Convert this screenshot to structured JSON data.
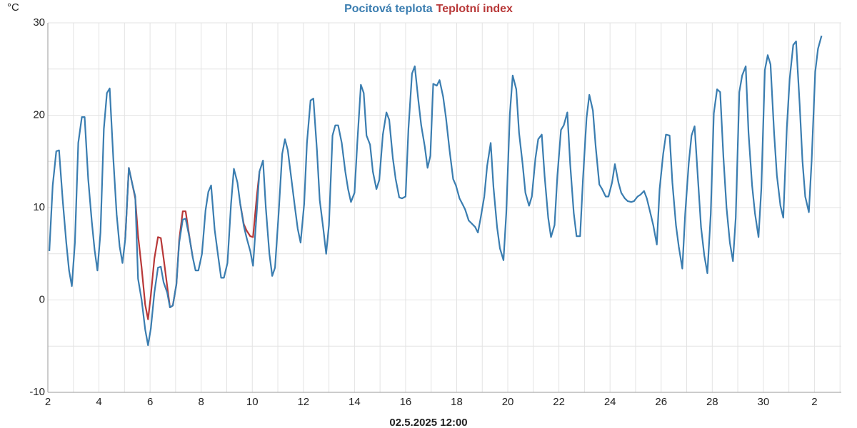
{
  "chart_data": {
    "type": "line",
    "y_label": "°C",
    "x_label": "02.5.2025 12:00",
    "xlim": [
      2,
      33.05
    ],
    "ylim": [
      -10,
      30
    ],
    "xticks": [
      2,
      4,
      6,
      8,
      10,
      12,
      14,
      16,
      18,
      20,
      22,
      24,
      26,
      28,
      30,
      {
        "value": 32,
        "label": "2"
      }
    ],
    "yticks": [
      -10,
      0,
      10,
      20,
      30
    ],
    "grid": true,
    "series": [
      {
        "name": "Pocitová teplota",
        "color": "#3a7db0",
        "x": [
          2.06,
          2.19,
          2.33,
          2.44,
          2.58,
          2.72,
          2.83,
          2.94,
          3.06,
          3.19,
          3.33,
          3.44,
          3.58,
          3.72,
          3.83,
          3.94,
          4.06,
          4.19,
          4.31,
          4.42,
          4.56,
          4.69,
          4.81,
          4.92,
          5.03,
          5.17,
          5.31,
          5.42,
          5.53,
          5.67,
          5.81,
          5.92,
          6.03,
          6.17,
          6.31,
          6.42,
          6.53,
          6.67,
          6.78,
          6.89,
          7.03,
          7.14,
          7.28,
          7.39,
          7.53,
          7.67,
          7.78,
          7.89,
          8.03,
          8.17,
          8.28,
          8.39,
          8.53,
          8.67,
          8.78,
          8.89,
          9.03,
          9.17,
          9.28,
          9.42,
          9.53,
          9.67,
          9.78,
          9.92,
          10.03,
          10.17,
          10.28,
          10.42,
          10.53,
          10.67,
          10.78,
          10.89,
          11.03,
          11.17,
          11.28,
          11.39,
          11.53,
          11.67,
          11.78,
          11.89,
          12.03,
          12.14,
          12.28,
          12.39,
          12.53,
          12.64,
          12.78,
          12.89,
          13.0,
          13.14,
          13.25,
          13.36,
          13.5,
          13.64,
          13.75,
          13.86,
          14.0,
          14.11,
          14.25,
          14.36,
          14.47,
          14.61,
          14.72,
          14.86,
          14.97,
          15.11,
          15.25,
          15.36,
          15.5,
          15.61,
          15.75,
          15.86,
          16.0,
          16.11,
          16.25,
          16.36,
          16.5,
          16.61,
          16.75,
          16.86,
          16.97,
          17.08,
          17.22,
          17.33,
          17.47,
          17.58,
          17.72,
          17.86,
          17.97,
          18.11,
          18.22,
          18.33,
          18.47,
          18.58,
          18.72,
          18.83,
          18.94,
          19.08,
          19.19,
          19.33,
          19.44,
          19.58,
          19.69,
          19.83,
          19.94,
          20.08,
          20.19,
          20.33,
          20.44,
          20.58,
          20.69,
          20.83,
          20.94,
          21.08,
          21.19,
          21.33,
          21.44,
          21.58,
          21.69,
          21.83,
          21.94,
          22.08,
          22.19,
          22.33,
          22.44,
          22.58,
          22.69,
          22.83,
          22.94,
          23.08,
          23.19,
          23.33,
          23.44,
          23.58,
          23.69,
          23.83,
          23.94,
          24.08,
          24.19,
          24.33,
          24.44,
          24.58,
          24.69,
          24.83,
          24.94,
          25.08,
          25.19,
          25.33,
          25.44,
          25.58,
          25.69,
          25.83,
          25.94,
          26.08,
          26.19,
          26.33,
          26.44,
          26.58,
          26.69,
          26.83,
          26.94,
          27.08,
          27.19,
          27.31,
          27.44,
          27.56,
          27.69,
          27.81,
          27.94,
          28.06,
          28.19,
          28.31,
          28.44,
          28.56,
          28.69,
          28.81,
          28.92,
          29.06,
          29.17,
          29.31,
          29.42,
          29.56,
          29.67,
          29.81,
          29.92,
          30.06,
          30.17,
          30.28,
          30.42,
          30.53,
          30.67,
          30.78,
          30.92,
          31.03,
          31.17,
          31.28,
          31.42,
          31.53,
          31.64,
          31.78,
          31.89,
          32.03,
          32.14,
          32.28
        ],
        "values": [
          5.3,
          12.4,
          16.1,
          16.2,
          10.8,
          6.2,
          3.2,
          1.5,
          6.2,
          17.0,
          19.8,
          19.8,
          13.1,
          8.5,
          5.4,
          3.2,
          7.3,
          18.5,
          22.4,
          22.9,
          15.4,
          9.3,
          5.8,
          4.0,
          6.6,
          14.3,
          12.5,
          11.2,
          2.3,
          0,
          -3.2,
          -4.9,
          -3.1,
          0.8,
          3.5,
          3.6,
          1.9,
          0.8,
          -0.8,
          -0.6,
          1.7,
          6.2,
          8.7,
          8.8,
          6.9,
          4.6,
          3.2,
          3.2,
          5.0,
          9.7,
          11.7,
          12.4,
          7.6,
          4.6,
          2.4,
          2.4,
          4.0,
          10.4,
          14.2,
          12.7,
          10.4,
          8.0,
          6.7,
          5.3,
          3.7,
          9.3,
          13.9,
          15.1,
          10.0,
          5.0,
          2.6,
          3.5,
          9.3,
          15.8,
          17.4,
          16.2,
          13.1,
          10.0,
          7.7,
          6.2,
          10.4,
          17.0,
          21.6,
          21.8,
          16.2,
          10.8,
          7.7,
          5.0,
          8.1,
          17.8,
          18.9,
          18.9,
          17.0,
          13.9,
          12.0,
          10.6,
          11.6,
          17.0,
          23.3,
          22.4,
          17.8,
          16.8,
          13.9,
          12.0,
          13.0,
          17.9,
          20.3,
          19.5,
          15.4,
          13.1,
          11.1,
          11.0,
          11.2,
          18.5,
          24.5,
          25.3,
          21.6,
          18.9,
          16.6,
          14.3,
          15.6,
          23.4,
          23.2,
          23.8,
          22.0,
          19.7,
          16.2,
          13.1,
          12.4,
          11.0,
          10.4,
          9.8,
          8.6,
          8.3,
          7.9,
          7.3,
          8.9,
          11.2,
          14.5,
          17.0,
          12.2,
          7.9,
          5.6,
          4.3,
          9.4,
          20.1,
          24.3,
          22.8,
          18.1,
          14.7,
          11.6,
          10.2,
          11.2,
          15.3,
          17.4,
          17.9,
          13.4,
          8.9,
          6.8,
          8.1,
          13.5,
          18.4,
          18.9,
          20.3,
          14.7,
          9.4,
          6.9,
          6.9,
          13.1,
          19.7,
          22.2,
          20.5,
          16.6,
          12.5,
          12.0,
          11.2,
          11.2,
          12.7,
          14.7,
          12.7,
          11.6,
          11.0,
          10.7,
          10.6,
          10.7,
          11.2,
          11.4,
          11.8,
          11.0,
          9.4,
          8.1,
          6.0,
          12.0,
          15.8,
          17.9,
          17.8,
          12.7,
          8.1,
          5.8,
          3.4,
          9.3,
          14.8,
          17.8,
          18.8,
          13.1,
          7.9,
          4.8,
          2.9,
          9.3,
          20.2,
          22.8,
          22.5,
          15.4,
          10.0,
          6.2,
          4.2,
          8.9,
          22.5,
          24.3,
          25.3,
          18.1,
          12.4,
          9.4,
          6.8,
          12.0,
          24.9,
          26.5,
          25.5,
          18.1,
          13.5,
          10.2,
          8.9,
          18.7,
          23.9,
          27.6,
          28.0,
          21.2,
          15.1,
          11.2,
          9.5,
          15.1,
          24.7,
          27.2,
          28.6
        ]
      },
      {
        "name": "Teplotní index",
        "color": "#b83838",
        "x": [
          5.03,
          5.17,
          5.31,
          5.42,
          5.53,
          5.67,
          5.81,
          5.92,
          6.03,
          6.17,
          6.31,
          6.42,
          6.53,
          6.67,
          6.78,
          6.89,
          7.03,
          7.14,
          7.28,
          7.39,
          7.53,
          7.67,
          null,
          9.53,
          9.67,
          9.78,
          9.92,
          10.03,
          10.17,
          10.28
        ],
        "values": [
          6.6,
          14.3,
          12.5,
          11.0,
          7.0,
          3.5,
          -0.5,
          -2.1,
          0.5,
          4.5,
          6.8,
          6.7,
          4.5,
          1.5,
          -0.8,
          -0.6,
          1.7,
          6.5,
          9.6,
          9.6,
          7.0,
          4.6,
          null,
          10.4,
          8.2,
          7.5,
          6.9,
          6.8,
          11.0,
          13.9
        ]
      }
    ]
  }
}
